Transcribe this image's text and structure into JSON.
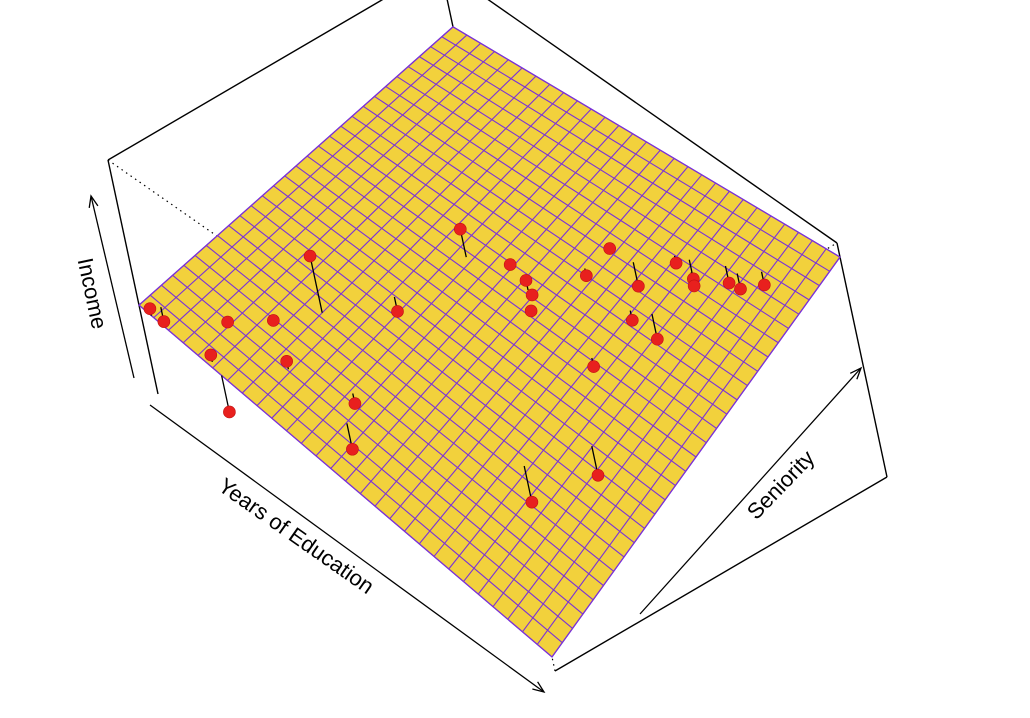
{
  "chart_data": {
    "type": "surface3d",
    "title": "",
    "xlabel": "Years of Education",
    "ylabel": "Seniority",
    "zlabel": "Income",
    "grid": true,
    "colors": {
      "surface_fill": "#f2d13c",
      "surface_grid": "#7a32d8",
      "points": "#e8201e",
      "residuals": "#000000",
      "box": "#000000"
    },
    "surface": {
      "x_range": [
        0,
        1
      ],
      "y_range": [
        0,
        1
      ],
      "z_range": [
        0,
        1
      ],
      "x_divisions": 28,
      "y_divisions": 28,
      "z_at_corners": {
        "x0_y0": 0.38,
        "x1_y0": 0.06,
        "x0_y1": 0.74,
        "x1_y1": 0.94
      }
    },
    "points": [
      {
        "x": 0.03,
        "y": 0.03,
        "z": 0.32
      },
      {
        "x": 0.03,
        "y": 0.0,
        "z": 0.4
      },
      {
        "x": 0.13,
        "y": 0.11,
        "z": 0.37
      },
      {
        "x": 0.17,
        "y": 0.01,
        "z": 0.36
      },
      {
        "x": 0.2,
        "y": 0.0,
        "z": 0.16
      },
      {
        "x": 0.2,
        "y": 0.17,
        "z": 0.41
      },
      {
        "x": 0.25,
        "y": 0.26,
        "z": 0.67
      },
      {
        "x": 0.28,
        "y": 0.11,
        "z": 0.38
      },
      {
        "x": 0.33,
        "y": 0.39,
        "z": 0.42
      },
      {
        "x": 0.4,
        "y": 0.16,
        "z": 0.3
      },
      {
        "x": 0.43,
        "y": 0.1,
        "z": 0.19
      },
      {
        "x": 0.38,
        "y": 0.56,
        "z": 0.69
      },
      {
        "x": 0.56,
        "y": 0.54,
        "z": 0.57
      },
      {
        "x": 0.45,
        "y": 0.61,
        "z": 0.58
      },
      {
        "x": 0.52,
        "y": 0.58,
        "z": 0.62
      },
      {
        "x": 0.54,
        "y": 0.57,
        "z": 0.59
      },
      {
        "x": 0.58,
        "y": 0.69,
        "z": 0.62
      },
      {
        "x": 0.6,
        "y": 0.75,
        "z": 0.71
      },
      {
        "x": 0.71,
        "y": 0.67,
        "z": 0.6
      },
      {
        "x": 0.65,
        "y": 0.76,
        "z": 0.6
      },
      {
        "x": 0.71,
        "y": 0.54,
        "z": 0.51
      },
      {
        "x": 0.75,
        "y": 0.69,
        "z": 0.55
      },
      {
        "x": 0.71,
        "y": 0.82,
        "z": 0.72
      },
      {
        "x": 0.74,
        "y": 0.83,
        "z": 0.68
      },
      {
        "x": 0.76,
        "y": 0.81,
        "z": 0.69
      },
      {
        "x": 0.84,
        "y": 0.86,
        "z": 0.73
      },
      {
        "x": 0.81,
        "y": 0.86,
        "z": 0.72
      },
      {
        "x": 0.88,
        "y": 0.89,
        "z": 0.77
      },
      {
        "x": 0.82,
        "y": 0.39,
        "z": 0.3
      },
      {
        "x": 0.74,
        "y": 0.27,
        "z": 0.19
      }
    ]
  }
}
